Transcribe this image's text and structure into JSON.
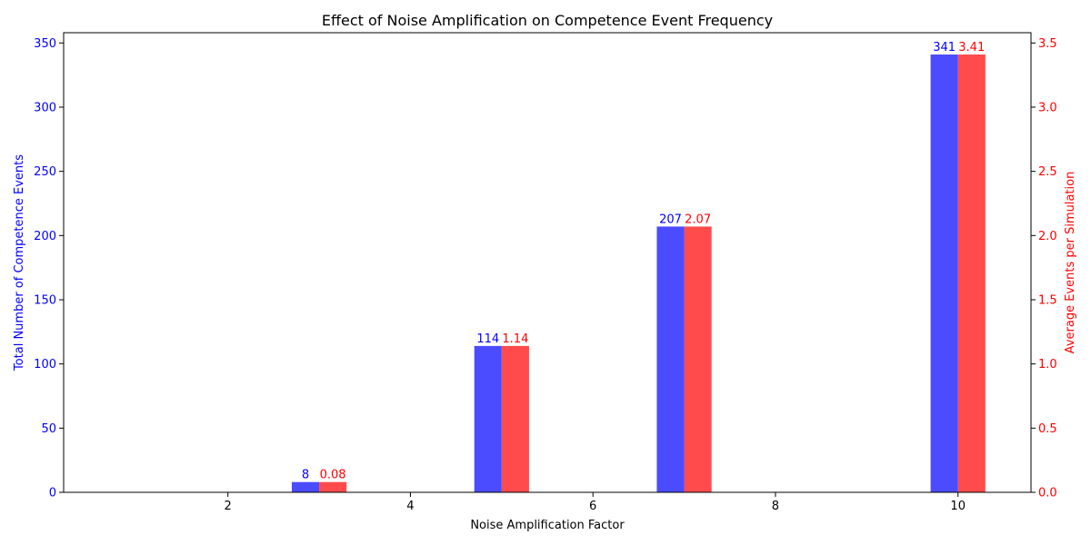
{
  "chart_data": {
    "type": "bar",
    "title": "Effect of Noise Amplification on Competence Event Frequency",
    "xlabel": "Noise Amplification Factor",
    "ylabel_left": "Total Number of Competence Events",
    "ylabel_right": "Average Events per Simulation",
    "x_ticks": [
      "2",
      "4",
      "6",
      "8",
      "10"
    ],
    "y_left_ticks": [
      "0",
      "50",
      "100",
      "150",
      "200",
      "250",
      "300",
      "350"
    ],
    "y_right_ticks": [
      "0.0",
      "0.5",
      "1.0",
      "1.5",
      "2.0",
      "2.5",
      "3.0",
      "3.5"
    ],
    "xlim": [
      0.2,
      10.8
    ],
    "ylim_left": [
      0,
      358
    ],
    "ylim_right": [
      0,
      3.58
    ],
    "x": [
      3,
      5,
      7,
      10
    ],
    "series": [
      {
        "axis": "left",
        "color": "#4b4bff",
        "values": [
          8,
          114,
          207,
          341
        ],
        "labels": [
          "8",
          "114",
          "207",
          "341"
        ]
      },
      {
        "axis": "right",
        "color": "#ff4b4b",
        "values": [
          0.08,
          1.14,
          2.07,
          3.41
        ],
        "labels": [
          "0.08",
          "1.14",
          "2.07",
          "3.41"
        ]
      }
    ],
    "left_axis_color": "#0000ff",
    "right_axis_color": "#ff0000",
    "grid": false
  }
}
